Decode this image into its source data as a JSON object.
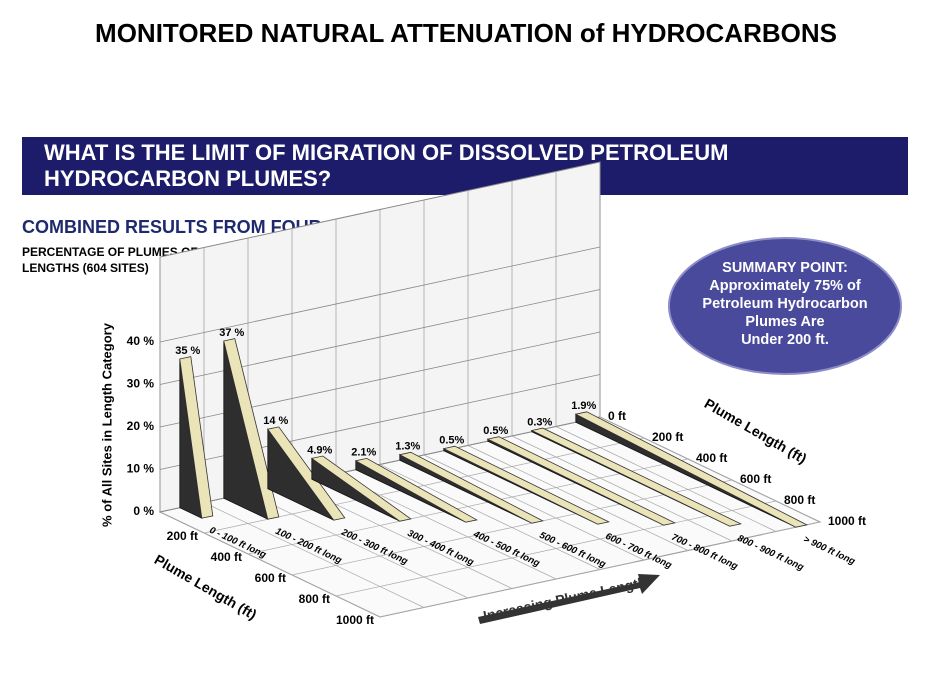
{
  "header": {
    "title": "MONITORED NATURAL ATTENUATION of HYDROCARBONS"
  },
  "banner": {
    "lines": [
      "WHAT IS THE LIMIT OF MIGRATION OF DISSOLVED PETROLEUM",
      "HYDROCARBON PLUMES?"
    ]
  },
  "callout": {
    "lines": [
      "SUMMARY POINT:",
      "Approximately 75% of",
      "Petroleum Hydrocarbon",
      "Plumes Are",
      "Under 200 ft."
    ]
  },
  "chart_data": {
    "type": "wedge3d",
    "title": "COMBINED RESULTS FROM FOUR STUDIES:",
    "subtitle": [
      "PERCENTAGE OF PLUMES OF DIFFERENT",
      "LENGTHS (604 SITES)"
    ],
    "y_label": "% of All Sites in Length Category",
    "z_label": "Plume Length (ft)",
    "x_annotation": "Increasing Plume Length",
    "categories": [
      "0 - 100 ft long",
      "100 - 200 ft long",
      "200 - 300 ft long",
      "300 - 400 ft long",
      "400 - 500 ft long",
      "500 - 600 ft long",
      "600 - 700 ft long",
      "700 - 800 ft long",
      "800 - 900 ft long",
      "> 900 ft long"
    ],
    "values": [
      35,
      37,
      14,
      4.9,
      2.1,
      1.3,
      0.5,
      0.5,
      0.3,
      1.9
    ],
    "value_labels": [
      "35 %",
      "37 %",
      "14 %",
      "4.9%",
      "2.1%",
      "1.3%",
      "0.5%",
      "0.5%",
      "0.3%",
      "1.9%"
    ],
    "ylim": [
      0,
      60
    ],
    "yticks": [
      {
        "value": 0,
        "label": "0 %"
      },
      {
        "value": 10,
        "label": "10 %"
      },
      {
        "value": 20,
        "label": "20 %"
      },
      {
        "value": 30,
        "label": "30 %"
      },
      {
        "value": 40,
        "label": "40 %"
      }
    ],
    "zlim": [
      0,
      1000
    ],
    "zticks": [
      {
        "value": 0,
        "label": "0 ft"
      },
      {
        "value": 200,
        "label": "200 ft"
      },
      {
        "value": 400,
        "label": "400 ft"
      },
      {
        "value": 600,
        "label": "600 ft"
      },
      {
        "value": 800,
        "label": "800 ft"
      },
      {
        "value": 1000,
        "label": "1000 ft"
      }
    ],
    "grid": true,
    "color": "#2e2e2e",
    "top_color": "#ece4b9"
  }
}
